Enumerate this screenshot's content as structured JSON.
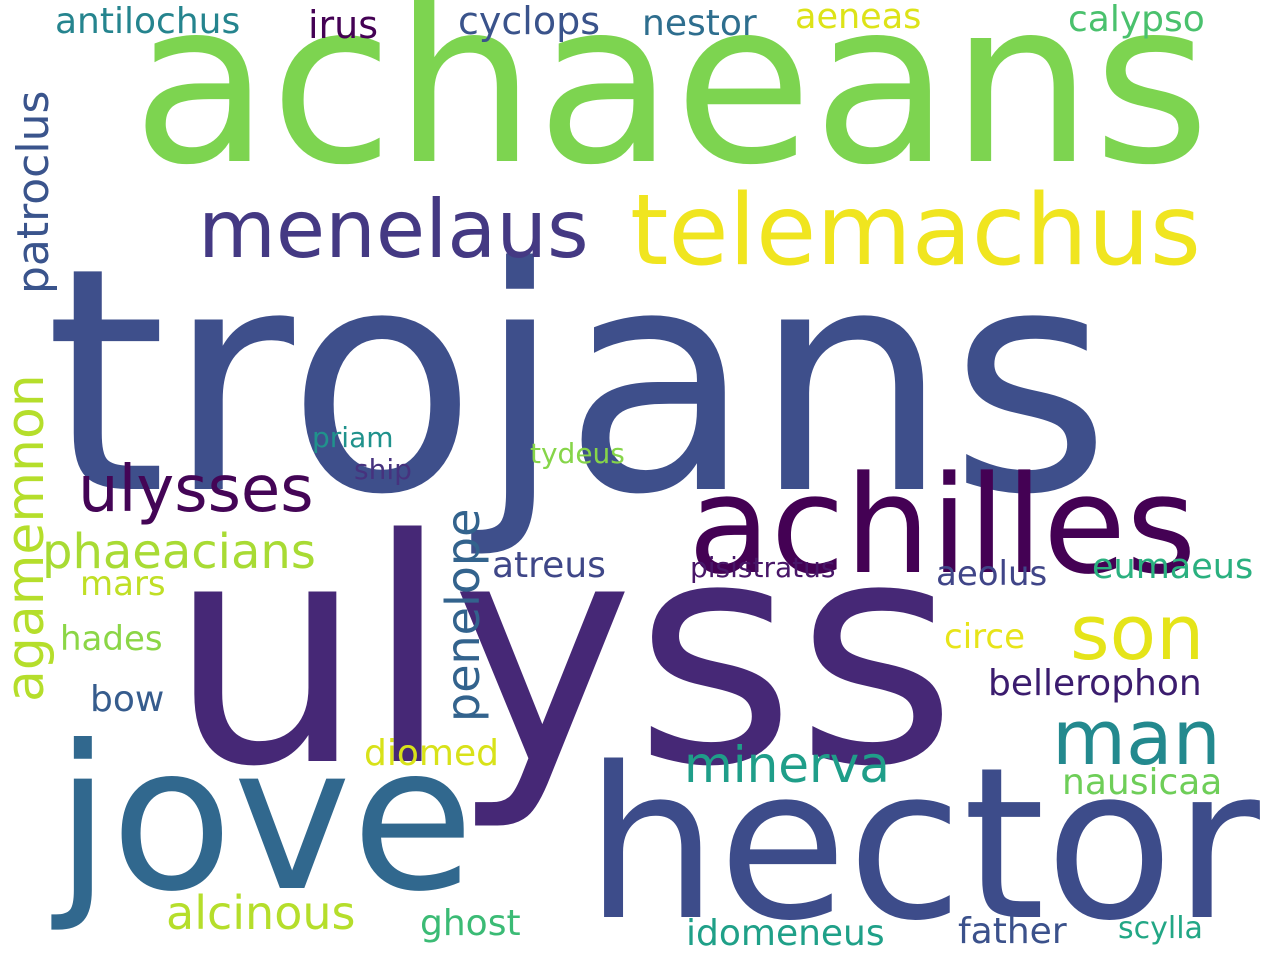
{
  "words": [
    {
      "text": "trojans",
      "color": "#3e4f8b"
    },
    {
      "text": "ulyss",
      "color": "#462876"
    },
    {
      "text": "achaeans",
      "color": "#7dd450"
    },
    {
      "text": "hector",
      "color": "#3d4c8a"
    },
    {
      "text": "jove",
      "color": "#31688e"
    },
    {
      "text": "achilles",
      "color": "#440154"
    },
    {
      "text": "telemachus",
      "color": "#f0e51f"
    },
    {
      "text": "menelaus",
      "color": "#443983"
    },
    {
      "text": "son",
      "color": "#e5e419"
    },
    {
      "text": "man",
      "color": "#23898e"
    },
    {
      "text": "ulysses",
      "color": "#440556"
    },
    {
      "text": "phaeacians",
      "color": "#a8db34"
    },
    {
      "text": "minerva",
      "color": "#1f9e89"
    },
    {
      "text": "alcinous",
      "color": "#b5de2b"
    },
    {
      "text": "agamemnon",
      "color": "#b5de2b"
    },
    {
      "text": "patroclus",
      "color": "#3a548c"
    },
    {
      "text": "penelope",
      "color": "#33638d"
    },
    {
      "text": "antilochus",
      "color": "#25848e"
    },
    {
      "text": "irus",
      "color": "#440154"
    },
    {
      "text": "cyclops",
      "color": "#3a538b"
    },
    {
      "text": "nestor",
      "color": "#2e6e8e"
    },
    {
      "text": "aeneas",
      "color": "#dde318"
    },
    {
      "text": "calypso",
      "color": "#4ac16d"
    },
    {
      "text": "atreus",
      "color": "#3f4788"
    },
    {
      "text": "pisistratus",
      "color": "#481668"
    },
    {
      "text": "aeolus",
      "color": "#404588"
    },
    {
      "text": "eumaeus",
      "color": "#2ab07f"
    },
    {
      "text": "circe",
      "color": "#e7e419"
    },
    {
      "text": "bellerophon",
      "color": "#3b1c6e"
    },
    {
      "text": "mars",
      "color": "#c0df25"
    },
    {
      "text": "hades",
      "color": "#8bd646"
    },
    {
      "text": "bow",
      "color": "#365c8d"
    },
    {
      "text": "diomed",
      "color": "#d8e219"
    },
    {
      "text": "nausicaa",
      "color": "#6ece58"
    },
    {
      "text": "ghost",
      "color": "#3bbb75"
    },
    {
      "text": "idomeneus",
      "color": "#1fa088"
    },
    {
      "text": "father",
      "color": "#3b518b"
    },
    {
      "text": "scylla",
      "color": "#22a785"
    },
    {
      "text": "priam",
      "color": "#20928c"
    },
    {
      "text": "ship",
      "color": "#46327e"
    },
    {
      "text": "tydeus",
      "color": "#86d549"
    }
  ]
}
